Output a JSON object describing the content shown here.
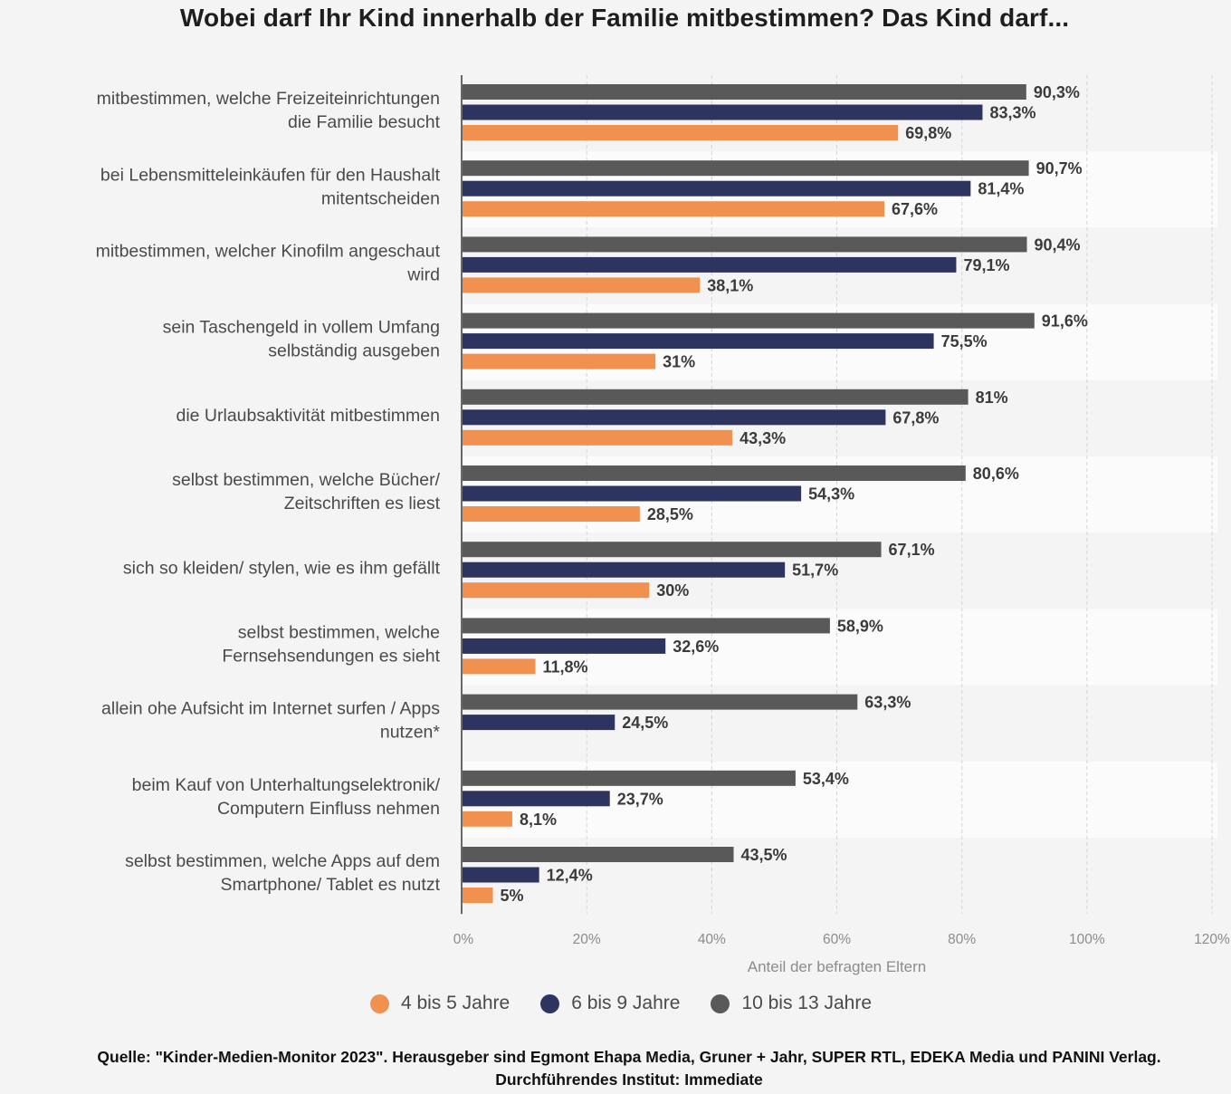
{
  "title": "Wobei darf Ihr Kind innerhalb der Familie mitbestimmen? Das Kind darf...",
  "source": "Quelle: \"Kinder-Medien-Monitor 2023\". Herausgeber sind Egmont Ehapa Media, Gruner + Jahr, SUPER RTL, EDEKA Media und PANINI Verlag. Durchführendes Institut: Immediate",
  "chart_data": {
    "type": "bar",
    "orientation": "horizontal",
    "title": "Wobei darf Ihr Kind innerhalb der Familie mitbestimmen? Das Kind darf...",
    "xlabel": "Anteil der befragten Eltern",
    "ylabel": "",
    "xlim": [
      0,
      120
    ],
    "ticks": [
      "0%",
      "20%",
      "40%",
      "60%",
      "80%",
      "100%",
      "120%"
    ],
    "grid": "vertical dashed",
    "legend_position": "bottom",
    "categories": [
      [
        "mitbestimmen, welche Freizeiteinrichtungen",
        "die Familie besucht"
      ],
      [
        "bei Lebensmitteleinkäufen für den Haushalt",
        "mitentscheiden"
      ],
      [
        "mitbestimmen, welcher Kinofilm angeschaut",
        "wird"
      ],
      [
        "sein Taschengeld in vollem Umfang",
        "selbständig ausgeben"
      ],
      [
        "die Urlaubsaktivität mitbestimmen"
      ],
      [
        "selbst bestimmen, welche Bücher/",
        "Zeitschriften es liest"
      ],
      [
        "sich so kleiden/ stylen, wie es ihm gefällt"
      ],
      [
        "selbst bestimmen, welche",
        "Fernsehsendungen es sieht"
      ],
      [
        "allein ohe Aufsicht im Internet surfen / Apps",
        "nutzen*"
      ],
      [
        "beim Kauf von Unterhaltungselektronik/",
        "Computern Einfluss nehmen"
      ],
      [
        "selbst bestimmen, welche Apps auf dem",
        "Smartphone/ Tablet es nutzt"
      ]
    ],
    "series": [
      {
        "name": "10 bis 13 Jahre",
        "color": "#595959",
        "values": [
          90.3,
          90.7,
          90.4,
          91.6,
          81,
          80.6,
          67.1,
          58.9,
          63.3,
          53.4,
          43.5
        ],
        "labels": [
          "90,3%",
          "90,7%",
          "90,4%",
          "91,6%",
          "81%",
          "80,6%",
          "67,1%",
          "58,9%",
          "63,3%",
          "53,4%",
          "43,5%"
        ]
      },
      {
        "name": "6 bis 9 Jahre",
        "color": "#2e3460",
        "values": [
          83.3,
          81.4,
          79.1,
          75.5,
          67.8,
          54.3,
          51.7,
          32.6,
          24.5,
          23.7,
          12.4
        ],
        "labels": [
          "83,3%",
          "81,4%",
          "79,1%",
          "75,5%",
          "67,8%",
          "54,3%",
          "51,7%",
          "32,6%",
          "24,5%",
          "23,7%",
          "12,4%"
        ]
      },
      {
        "name": "4 bis 5 Jahre",
        "color": "#f0914f",
        "values": [
          69.8,
          67.6,
          38.1,
          31,
          43.3,
          28.5,
          30,
          11.8,
          null,
          8.1,
          5
        ],
        "labels": [
          "69,8%",
          "67,6%",
          "38,1%",
          "31%",
          "43,3%",
          "28,5%",
          "30%",
          "11,8%",
          null,
          "8,1%",
          "5%"
        ]
      }
    ],
    "legend": [
      {
        "name": "4 bis 5 Jahre",
        "color": "#f0914f"
      },
      {
        "name": "6 bis 9 Jahre",
        "color": "#2e3460"
      },
      {
        "name": "10 bis 13 Jahre",
        "color": "#595959"
      }
    ]
  }
}
